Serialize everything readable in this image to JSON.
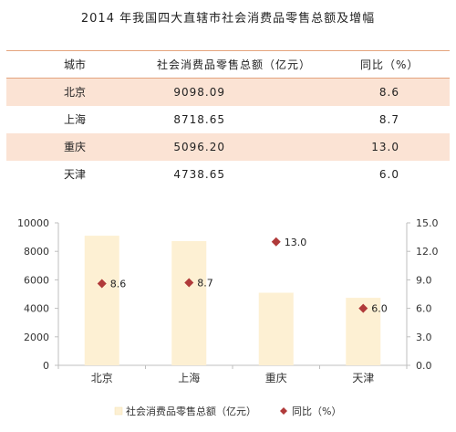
{
  "title": "2014 年我国四大直辖市社会消费品零售总额及增幅",
  "table": {
    "headers": {
      "city": "城市",
      "total": "社会消费品零售总额（亿元）",
      "yoy": "同比（%）"
    },
    "rows": [
      {
        "city": "北京",
        "total": "9098.09",
        "yoy": "8.6"
      },
      {
        "city": "上海",
        "total": "8718.65",
        "yoy": "8.7"
      },
      {
        "city": "重庆",
        "total": "5096.20",
        "yoy": "13.0"
      },
      {
        "city": "天津",
        "total": "4738.65",
        "yoy": "6.0"
      }
    ]
  },
  "chart_data": {
    "type": "bar",
    "categories": [
      "北京",
      "上海",
      "重庆",
      "天津"
    ],
    "series": [
      {
        "name": "社会消费品零售总额（亿元）",
        "type": "bar",
        "axis": "left",
        "values": [
          9098.09,
          8718.65,
          5096.2,
          4738.65
        ],
        "color": "#fdf0d3"
      },
      {
        "name": "同比（%）",
        "type": "scatter",
        "axis": "right",
        "values": [
          8.6,
          8.7,
          13.0,
          6.0
        ],
        "color": "#b03a3a",
        "labels": [
          "8.6",
          "8.7",
          "13.0",
          "6.0"
        ]
      }
    ],
    "y_left": {
      "min": 0,
      "max": 10000,
      "ticks": [
        "0",
        "2000",
        "4000",
        "6000",
        "8000",
        "10000"
      ]
    },
    "y_right": {
      "min": 0,
      "max": 15,
      "ticks": [
        "0.0",
        "3.0",
        "6.0",
        "9.0",
        "12.0",
        "15.0"
      ]
    },
    "grid": false,
    "legend_position": "bottom"
  }
}
